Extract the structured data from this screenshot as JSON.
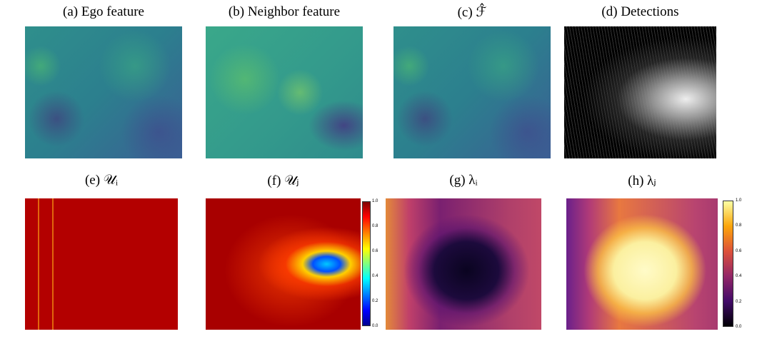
{
  "panels": [
    {
      "caption": "(a) Ego feature"
    },
    {
      "caption": "(b) Neighbor feature"
    },
    {
      "caption": "(c) ℱ̂"
    },
    {
      "caption": "(d) Detections"
    },
    {
      "caption": "(e) 𝒰ᵢ"
    },
    {
      "caption": "(f) 𝒰ⱼ"
    },
    {
      "caption": "(g) λᵢ"
    },
    {
      "caption": "(h) λⱼ"
    }
  ],
  "colorbars": [
    {
      "ticks": [
        "0.0",
        "0.2",
        "0.4",
        "0.6",
        "0.8",
        "1.0"
      ]
    },
    {
      "ticks": [
        "0.0",
        "0.2",
        "0.4",
        "0.6",
        "0.8",
        "1.0"
      ]
    }
  ]
}
